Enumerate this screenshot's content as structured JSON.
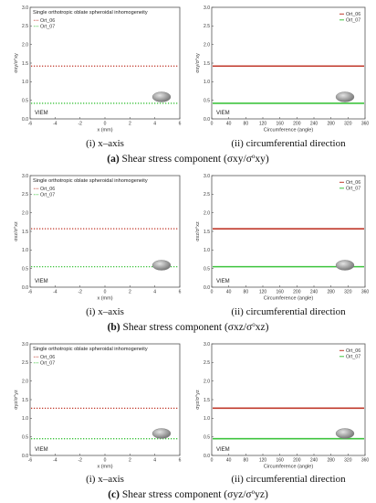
{
  "colors": {
    "ort06": "#c0392b",
    "ort07": "#3ec43e",
    "frame": "#555555",
    "ellipse_dark": "#6e6e6e",
    "ellipse_light": "#d4d4d4"
  },
  "rows": [
    {
      "caption_letter": "(a)",
      "caption_text": "Shear stress component (σxy/σ",
      "caption_sup": "o",
      "caption_end": "xy)",
      "caption_close": ""
    },
    {
      "caption_letter": "(b)",
      "caption_text": "Shear stress component (σxz/σ",
      "caption_sup": "o",
      "caption_end": "xz)",
      "caption_close": ""
    },
    {
      "caption_letter": "(c)",
      "caption_text": "Shear stress component (σyz/σ",
      "caption_sup": "o",
      "caption_end": "yz)",
      "caption_close": ""
    }
  ],
  "subcaptions": {
    "left": "(i) x–axis",
    "right": "(ii) circumferential direction"
  },
  "chart_data": [
    {
      "row": 0,
      "panel": "x-axis",
      "type": "line",
      "title": "Single orthotropic oblate spheroidal inhomogeneity",
      "xlabel": "x (mm)",
      "ylabel": "σxy/σ°xy",
      "xlim": [
        -6,
        6
      ],
      "ylim": [
        0,
        3.0
      ],
      "xticks": [
        "-6",
        "-4",
        "-2",
        "0",
        "2",
        "4",
        "6"
      ],
      "yticks": [
        "0.0",
        "0.5",
        "1.0",
        "1.5",
        "2.0",
        "2.5",
        "3.0"
      ],
      "series": [
        {
          "name": "Ort_06",
          "style": "dotted",
          "value": 1.42
        },
        {
          "name": "Ort_07",
          "style": "dotted",
          "value": 0.42
        }
      ],
      "legend": "top-left",
      "annotation": "VIEM",
      "inset": "oblate spheroid"
    },
    {
      "row": 0,
      "panel": "circumferential",
      "type": "line",
      "title": "",
      "xlabel": "Circumference (angle)",
      "ylabel": "σxy/σ°xy",
      "xlim": [
        0,
        360
      ],
      "ylim": [
        0,
        3.0
      ],
      "xticks": [
        "0",
        "40",
        "80",
        "120",
        "160",
        "200",
        "240",
        "280",
        "320",
        "360"
      ],
      "yticks": [
        "0.0",
        "0.5",
        "1.0",
        "1.5",
        "2.0",
        "2.5",
        "3.0"
      ],
      "series": [
        {
          "name": "Ort_06",
          "style": "solid",
          "value": 1.42
        },
        {
          "name": "Ort_07",
          "style": "solid",
          "value": 0.42
        }
      ],
      "legend": "top-right",
      "annotation": "VIEM",
      "inset": "oblate spheroid"
    },
    {
      "row": 1,
      "panel": "x-axis",
      "type": "line",
      "title": "Single orthotropic oblate spheroidal inhomogeneity",
      "xlabel": "x (mm)",
      "ylabel": "σxz/σ°xz",
      "xlim": [
        -6,
        6
      ],
      "ylim": [
        0,
        3.0
      ],
      "xticks": [
        "-6",
        "-4",
        "-2",
        "0",
        "2",
        "4",
        "6"
      ],
      "yticks": [
        "0.0",
        "0.5",
        "1.0",
        "1.5",
        "2.0",
        "2.5",
        "3.0"
      ],
      "series": [
        {
          "name": "Ort_06",
          "style": "dotted",
          "value": 1.57
        },
        {
          "name": "Ort_07",
          "style": "dotted",
          "value": 0.55
        }
      ],
      "legend": "top-left",
      "annotation": "VIEM",
      "inset": "oblate spheroid"
    },
    {
      "row": 1,
      "panel": "circumferential",
      "type": "line",
      "title": "",
      "xlabel": "Circumference (angle)",
      "ylabel": "σxz/σ°xz",
      "xlim": [
        0,
        360
      ],
      "ylim": [
        0,
        3.0
      ],
      "xticks": [
        "0",
        "40",
        "80",
        "120",
        "160",
        "200",
        "240",
        "280",
        "320",
        "360"
      ],
      "yticks": [
        "0.0",
        "0.5",
        "1.0",
        "1.5",
        "2.0",
        "2.5",
        "3.0"
      ],
      "series": [
        {
          "name": "Ort_06",
          "style": "solid",
          "value": 1.57
        },
        {
          "name": "Ort_07",
          "style": "solid",
          "value": 0.55
        }
      ],
      "legend": "top-right",
      "annotation": "VIEM",
      "inset": "oblate spheroid"
    },
    {
      "row": 2,
      "panel": "x-axis",
      "type": "line",
      "title": "Single orthotropic oblate spheroidal inhomogeneity",
      "xlabel": "x (mm)",
      "ylabel": "σyz/σ°yz",
      "xlim": [
        -6,
        6
      ],
      "ylim": [
        0,
        3.0
      ],
      "xticks": [
        "-6",
        "-4",
        "-2",
        "0",
        "2",
        "4",
        "6"
      ],
      "yticks": [
        "0.0",
        "0.5",
        "1.0",
        "1.5",
        "2.0",
        "2.5",
        "3.0"
      ],
      "series": [
        {
          "name": "Ort_06",
          "style": "dotted",
          "value": 1.27
        },
        {
          "name": "Ort_07",
          "style": "dotted",
          "value": 0.45
        }
      ],
      "legend": "top-left",
      "annotation": "VIEM",
      "inset": "oblate spheroid"
    },
    {
      "row": 2,
      "panel": "circumferential",
      "type": "line",
      "title": "",
      "xlabel": "Circumference (angle)",
      "ylabel": "σyz/σ°yz",
      "xlim": [
        0,
        360
      ],
      "ylim": [
        0,
        3.0
      ],
      "xticks": [
        "0",
        "40",
        "80",
        "120",
        "160",
        "200",
        "240",
        "280",
        "320",
        "360"
      ],
      "yticks": [
        "0.0",
        "0.5",
        "1.0",
        "1.5",
        "2.0",
        "2.5",
        "3.0"
      ],
      "series": [
        {
          "name": "Ort_06",
          "style": "solid",
          "value": 1.27
        },
        {
          "name": "Ort_07",
          "style": "solid",
          "value": 0.45
        }
      ],
      "legend": "top-right",
      "annotation": "VIEM",
      "inset": "oblate spheroid"
    }
  ]
}
